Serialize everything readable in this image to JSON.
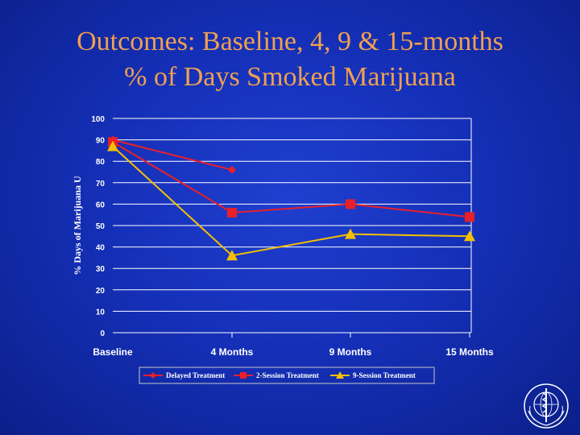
{
  "slide": {
    "title_line1": "Outcomes:  Baseline, 4, 9 & 15-months",
    "title_line2": "% of Days Smoked Marijuana"
  },
  "colors": {
    "title": "#f0a050",
    "delayed": "#e8202a",
    "two_session": "#e8202a",
    "nine_session": "#f5c000"
  },
  "chart_data": {
    "type": "line",
    "ylabel": "% Days of Marijuana U",
    "categories": [
      "Baseline",
      "4 Months",
      "9 Months",
      "15 Months"
    ],
    "ylim": [
      0,
      100
    ],
    "yticks": [
      0,
      10,
      20,
      30,
      40,
      50,
      60,
      70,
      80,
      90,
      100
    ],
    "grid": true,
    "legend_position": "bottom",
    "series": [
      {
        "name": "Delayed Treatment",
        "marker": "diamond",
        "values": [
          90,
          76,
          null,
          null
        ]
      },
      {
        "name": "2-Session Treatment",
        "marker": "square",
        "values": [
          89,
          56,
          60,
          54
        ]
      },
      {
        "name": "9-Session Treatment",
        "marker": "triangle",
        "values": [
          87,
          36,
          46,
          45
        ]
      }
    ]
  }
}
